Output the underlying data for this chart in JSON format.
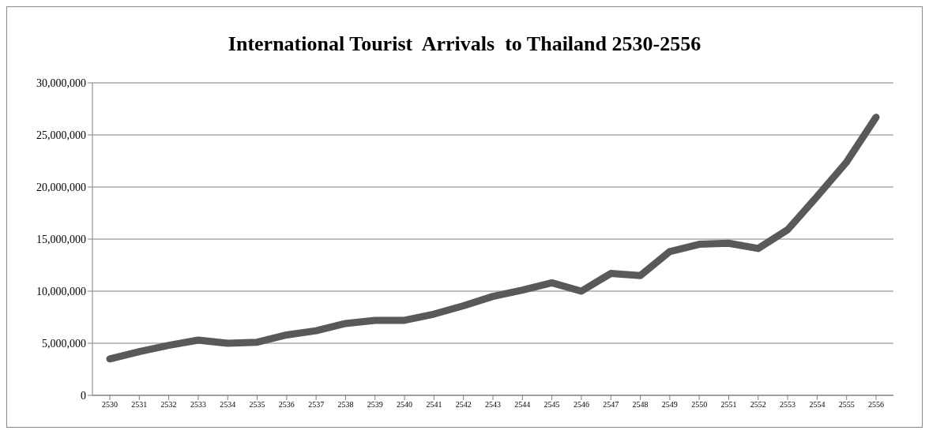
{
  "chart_data": {
    "type": "line",
    "title": "International Tourist  Arrivals  to Thailand 2530-2556",
    "categories": [
      "2530",
      "2531",
      "2532",
      "2533",
      "2534",
      "2535",
      "2536",
      "2537",
      "2538",
      "2539",
      "2540",
      "2541",
      "2542",
      "2543",
      "2544",
      "2545",
      "2546",
      "2547",
      "2548",
      "2549",
      "2550",
      "2551",
      "2552",
      "2553",
      "2554",
      "2555",
      "2556"
    ],
    "series": [
      {
        "color": "#595959",
        "values": [
          3500000,
          4200000,
          4800000,
          5300000,
          5000000,
          5100000,
          5800000,
          6200000,
          6900000,
          7200000,
          7200000,
          7800000,
          8600000,
          9500000,
          10100000,
          10800000,
          10000000,
          11700000,
          11500000,
          13800000,
          14500000,
          14600000,
          14100000,
          15900000,
          19100000,
          22400000,
          26700000
        ]
      }
    ],
    "ylim": [
      0,
      30000000
    ],
    "yticks": [
      {
        "value": 0,
        "label": "0"
      },
      {
        "value": 5000000,
        "label": "5,000,000"
      },
      {
        "value": 10000000,
        "label": "10,000,000"
      },
      {
        "value": 15000000,
        "label": "15,000,000"
      },
      {
        "value": 20000000,
        "label": "20,000,000"
      },
      {
        "value": 25000000,
        "label": "25,000,000"
      },
      {
        "value": 30000000,
        "label": "30,000,000"
      }
    ],
    "grid": "y",
    "legend": false,
    "marker": "none",
    "line_style": "solid"
  }
}
